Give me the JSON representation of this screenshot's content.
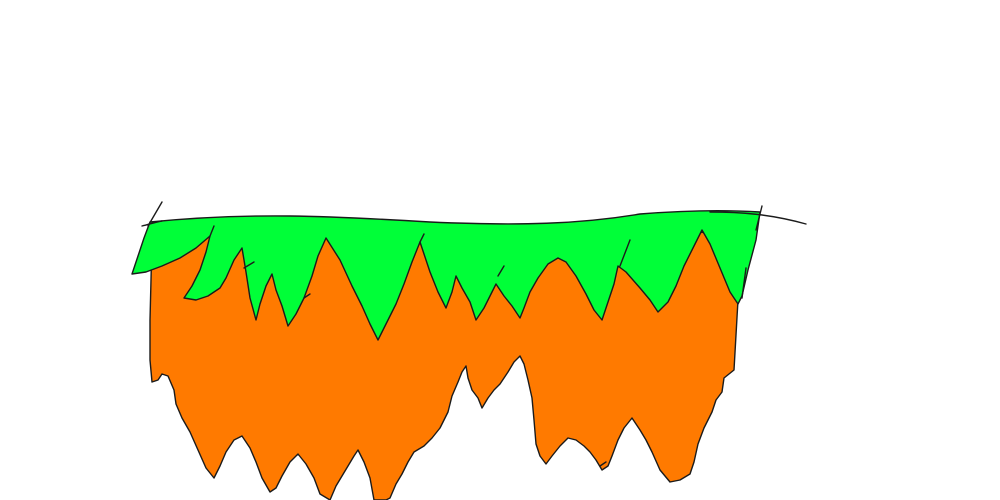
{
  "drawing": {
    "subject": "floating-island-with-grass",
    "colors": {
      "background": "#ffffff",
      "dirt": "#ff7a00",
      "grass": "#00ff38",
      "outline": "#1b1b1b"
    }
  }
}
